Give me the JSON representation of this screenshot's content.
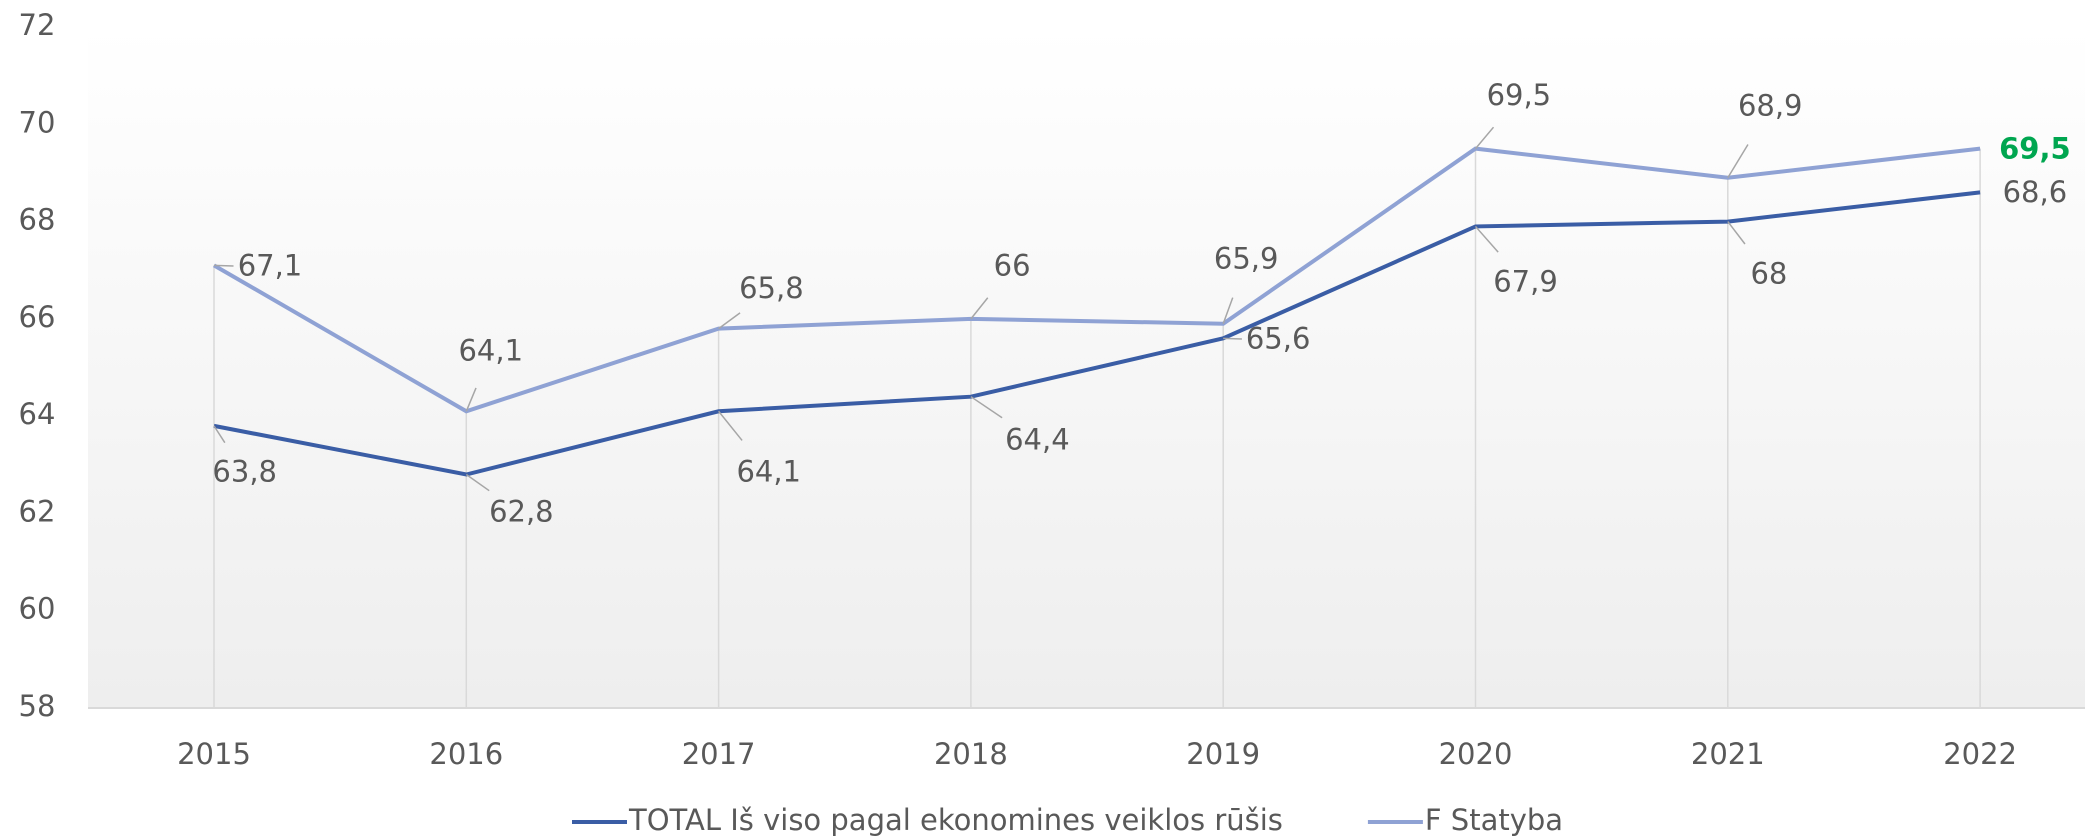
{
  "chart_data": {
    "type": "line",
    "categories": [
      "2015",
      "2016",
      "2017",
      "2018",
      "2019",
      "2020",
      "2021",
      "2022"
    ],
    "series": [
      {
        "name": "TOTAL Iš viso pagal ekonomines veiklos rūšis",
        "color": "#3a5da5",
        "values": [
          63.8,
          62.8,
          64.1,
          64.4,
          65.6,
          67.9,
          68,
          68.6
        ],
        "value_labels": [
          "63,8",
          "62,8",
          "64,1",
          "64,4",
          "65,6",
          "67,9",
          "68",
          "68,6"
        ]
      },
      {
        "name": "F Statyba",
        "color": "#8fa2d4",
        "values": [
          67.1,
          64.1,
          65.8,
          66,
          65.9,
          69.5,
          68.9,
          69.5
        ],
        "value_labels": [
          "67,1",
          "64,1",
          "65,8",
          "66",
          "65,9",
          "69,5",
          "68,9",
          "69,5"
        ]
      }
    ],
    "ylim": [
      58,
      72
    ],
    "yticks": [
      58,
      60,
      62,
      64,
      66,
      68,
      70,
      72
    ],
    "legend": "bottom",
    "highlight_color": "#00a650"
  }
}
